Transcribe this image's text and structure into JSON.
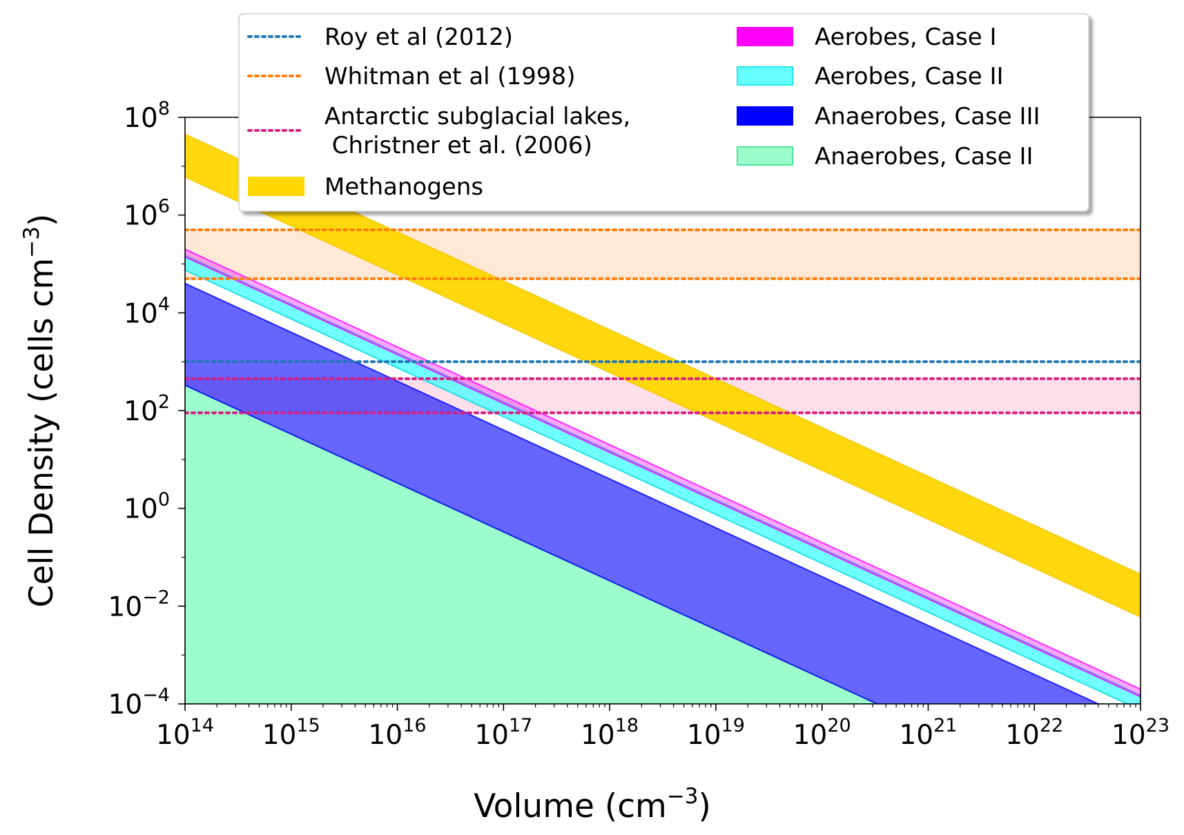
{
  "chart_data": {
    "type": "area",
    "xlabel": "Volume (cm",
    "xlabel_exp": "−3",
    "xlabel_end": ")",
    "ylabel": "Cell Density (cells cm",
    "ylabel_exp": "−3",
    "ylabel_end": ")",
    "x_scale": "log",
    "y_scale": "log",
    "xlim": [
      100000000000000.0,
      1e+23
    ],
    "ylim": [
      0.0001,
      100000000.0
    ],
    "x_ticks": [
      {
        "base": "10",
        "exp": "14",
        "value": 100000000000000.0
      },
      {
        "base": "10",
        "exp": "15",
        "value": 1000000000000000.0
      },
      {
        "base": "10",
        "exp": "16",
        "value": 1e+16
      },
      {
        "base": "10",
        "exp": "17",
        "value": 1e+17
      },
      {
        "base": "10",
        "exp": "18",
        "value": 1e+18
      },
      {
        "base": "10",
        "exp": "19",
        "value": 1e+19
      },
      {
        "base": "10",
        "exp": "20",
        "value": 1e+20
      },
      {
        "base": "10",
        "exp": "21",
        "value": 1e+21
      },
      {
        "base": "10",
        "exp": "22",
        "value": 1e+22
      },
      {
        "base": "10",
        "exp": "23",
        "value": 1e+23
      }
    ],
    "y_ticks": [
      {
        "base": "10",
        "exp": "−4",
        "value": 0.0001
      },
      {
        "base": "10",
        "exp": "−2",
        "value": 0.01
      },
      {
        "base": "10",
        "exp": "0",
        "value": 1
      },
      {
        "base": "10",
        "exp": "2",
        "value": 100.0
      },
      {
        "base": "10",
        "exp": "4",
        "value": 10000.0
      },
      {
        "base": "10",
        "exp": "6",
        "value": 1000000.0
      },
      {
        "base": "10",
        "exp": "8",
        "value": 100000000.0
      }
    ],
    "grid": false,
    "legend_position": "top-center",
    "bands": [
      {
        "name": "Anaerobes, Case II",
        "color": "#9dfccb",
        "edge": "#4fe39a",
        "opacity": 1.0,
        "lower": [
          [
            100000000000000.0,
            0.0001
          ],
          [
            1e+23,
            0.0001
          ]
        ],
        "upper": [
          [
            100000000000000.0,
            330
          ],
          [
            1e+23,
            3.3e-07
          ]
        ]
      },
      {
        "name": "Anaerobes, Case III",
        "color": "#0000ff",
        "edge": "#0000ff",
        "opacity": 0.6,
        "lower": [
          [
            100000000000000.0,
            330
          ],
          [
            1e+23,
            3.3e-07
          ]
        ],
        "upper": [
          [
            100000000000000.0,
            40000
          ],
          [
            1e+23,
            4e-05
          ]
        ]
      },
      {
        "name": "Aerobes, Case II",
        "color": "#40ffff",
        "edge": "#00d8e0",
        "opacity": 0.75,
        "lower": [
          [
            100000000000000.0,
            75000
          ],
          [
            1e+23,
            7.5e-05
          ]
        ],
        "upper": [
          [
            100000000000000.0,
            150000
          ],
          [
            1e+23,
            0.00015
          ]
        ]
      },
      {
        "name": "Aerobes, Case I",
        "color": "#ff00ff",
        "edge": "#ff00ff",
        "opacity": 0.35,
        "lower": [
          [
            100000000000000.0,
            140000
          ],
          [
            1e+23,
            0.00014
          ]
        ],
        "upper": [
          [
            100000000000000.0,
            200000
          ],
          [
            1e+23,
            0.0002
          ]
        ]
      },
      {
        "name": "Methanogens",
        "color": "#ffd700",
        "edge": "#f5c400",
        "opacity": 0.95,
        "lower": [
          [
            100000000000000.0,
            6000000
          ],
          [
            1e+23,
            0.006
          ]
        ],
        "upper": [
          [
            100000000000000.0,
            45000000
          ],
          [
            1e+23,
            0.045
          ]
        ]
      }
    ],
    "reference_ranges": [
      {
        "name": "Whitman et al (1998)",
        "color": "#ff7f0e",
        "fill": "#ffe3cc",
        "low": 50000,
        "high": 500000
      },
      {
        "name": "Antarctic subglacial lakes, Christner et al. (2006)",
        "color": "#d61f82",
        "fill": "#fbd7e4",
        "low": 90,
        "high": 450
      }
    ],
    "reference_lines": [
      {
        "name": "Roy et al (2012)",
        "color": "#1f77b4",
        "value": 1000
      }
    ],
    "legend": {
      "left": [
        {
          "label_lines": [
            "Roy et al (2012)"
          ],
          "kind": "dotted",
          "color": "#1f77b4"
        },
        {
          "label_lines": [
            "Whitman et al (1998)"
          ],
          "kind": "dotted",
          "color": "#ff7f0e"
        },
        {
          "label_lines": [
            "Antarctic subglacial lakes,",
            " Christner et al. (2006)"
          ],
          "kind": "dotted",
          "color": "#d61f82"
        },
        {
          "label_lines": [
            "Methanogens"
          ],
          "kind": "patch",
          "color": "#ffd700",
          "edge": "#ffd700"
        }
      ],
      "right": [
        {
          "label_lines": [
            "Aerobes, Case I"
          ],
          "kind": "patch",
          "color": "#ff00ff",
          "edge": "#ff00ff"
        },
        {
          "label_lines": [
            "Aerobes, Case II"
          ],
          "kind": "patch",
          "color": "#66ffff",
          "edge": "#1ee8f0"
        },
        {
          "label_lines": [
            "Anaerobes, Case III"
          ],
          "kind": "patch",
          "color": "#0000ff",
          "edge": "#0000ff"
        },
        {
          "label_lines": [
            "Anaerobes, Case II"
          ],
          "kind": "patch",
          "color": "#9dfccb",
          "edge": "#4fe39a"
        }
      ]
    }
  }
}
